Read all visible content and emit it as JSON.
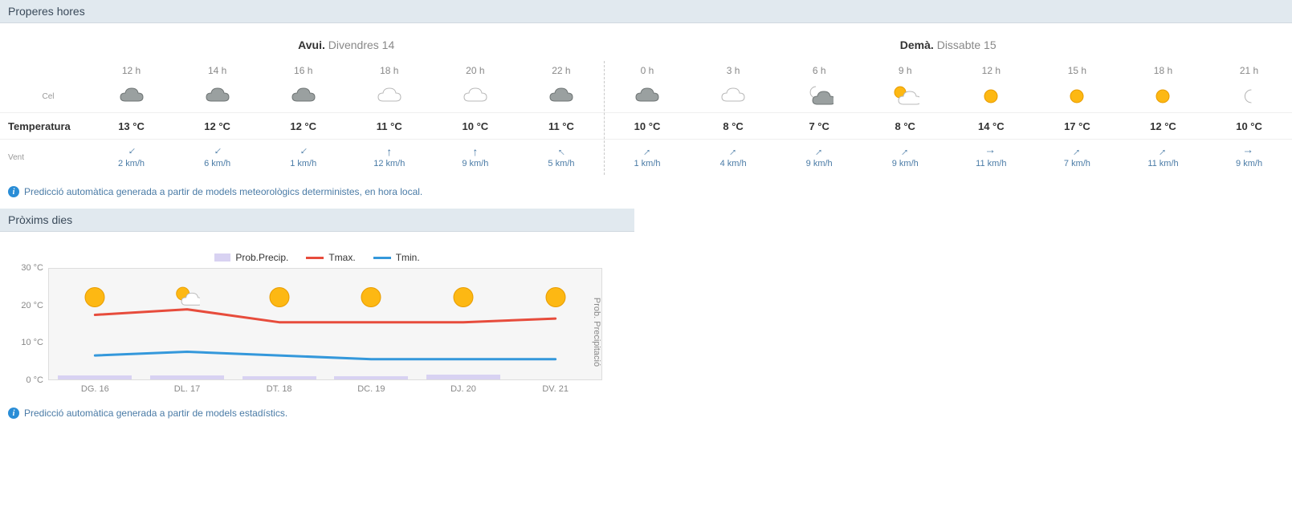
{
  "section_hours_title": "Properes hores",
  "section_days_title": "Pròxims dies",
  "info_hours": "Predicció automàtica generada a partir de models meteorològics deterministes, en hora local.",
  "info_days": "Predicció automàtica generada a partir de models estadístics.",
  "row_labels": {
    "sky": "Cel",
    "temp": "Temperatura",
    "wind": "Vent"
  },
  "days_header": [
    {
      "prefix": "Avui.",
      "label": " Divendres 14"
    },
    {
      "prefix": "Demà.",
      "label": " Dissabte 15"
    }
  ],
  "icon_palette": {
    "cloud_dark_fill": "#9aa0a0",
    "cloud_dark_stroke": "#6f7575",
    "cloud_light_fill": "#ffffff",
    "cloud_light_stroke": "#b9b9b9",
    "sun_fill": "#fdb813",
    "sun_stroke": "#e89c00",
    "moon_fill": "#d8d8d8",
    "moon_stroke": "#b5b5b5"
  },
  "hours": [
    {
      "time": "12 h",
      "sky": "cloud-dark",
      "temp": "13 °C",
      "wind_dir": 225,
      "wind_speed": "2 km/h"
    },
    {
      "time": "14 h",
      "sky": "cloud-dark",
      "temp": "12 °C",
      "wind_dir": 225,
      "wind_speed": "6 km/h"
    },
    {
      "time": "16 h",
      "sky": "cloud-dark",
      "temp": "12 °C",
      "wind_dir": 225,
      "wind_speed": "1 km/h"
    },
    {
      "time": "18 h",
      "sky": "cloud-light",
      "temp": "11 °C",
      "wind_dir": 0,
      "wind_speed": "12 km/h"
    },
    {
      "time": "20 h",
      "sky": "cloud-light",
      "temp": "10 °C",
      "wind_dir": 0,
      "wind_speed": "9 km/h"
    },
    {
      "time": "22 h",
      "sky": "cloud-dark",
      "temp": "11 °C",
      "wind_dir": 315,
      "wind_speed": "5 km/h"
    },
    {
      "time": "0 h",
      "sky": "cloud-dark",
      "temp": "10 °C",
      "wind_dir": 45,
      "wind_speed": "1 km/h"
    },
    {
      "time": "3 h",
      "sky": "cloud-light",
      "temp": "8 °C",
      "wind_dir": 45,
      "wind_speed": "4 km/h"
    },
    {
      "time": "6 h",
      "sky": "moon-cloud",
      "temp": "7 °C",
      "wind_dir": 45,
      "wind_speed": "9 km/h"
    },
    {
      "time": "9 h",
      "sky": "sun-cloud",
      "temp": "8 °C",
      "wind_dir": 45,
      "wind_speed": "9 km/h"
    },
    {
      "time": "12 h",
      "sky": "sun",
      "temp": "14 °C",
      "wind_dir": 90,
      "wind_speed": "11 km/h"
    },
    {
      "time": "15 h",
      "sky": "sun",
      "temp": "17 °C",
      "wind_dir": 45,
      "wind_speed": "7 km/h"
    },
    {
      "time": "18 h",
      "sky": "sun",
      "temp": "12 °C",
      "wind_dir": 45,
      "wind_speed": "11 km/h"
    },
    {
      "time": "21 h",
      "sky": "moon",
      "temp": "10 °C",
      "wind_dir": 90,
      "wind_speed": "9 km/h"
    }
  ],
  "split_after_index": 6,
  "legend": {
    "precip": "Prob.Precip.",
    "tmax": "Tmax.",
    "tmin": "Tmin."
  },
  "chart": {
    "type": "line+bar",
    "y_min": 0,
    "y_max": 30,
    "y_step": 10,
    "y_unit": "°C",
    "y_right_label": "Prob. Precipitació",
    "tmax_color": "#e74c3c",
    "tmin_color": "#3498db",
    "precip_color": "#d8d2f2",
    "plot_bg": "#f6f6f6",
    "line_width": 3,
    "days": [
      {
        "label": "DG. 16",
        "tmax": 17.5,
        "tmin": 6.5,
        "precip_pct": 8,
        "sky": "sun"
      },
      {
        "label": "DL. 17",
        "tmax": 19.0,
        "tmin": 7.5,
        "precip_pct": 8,
        "sky": "sun-cloud"
      },
      {
        "label": "DT. 18",
        "tmax": 15.5,
        "tmin": 6.5,
        "precip_pct": 6,
        "sky": "sun"
      },
      {
        "label": "DC. 19",
        "tmax": 15.5,
        "tmin": 5.5,
        "precip_pct": 6,
        "sky": "sun"
      },
      {
        "label": "DJ. 20",
        "tmax": 15.5,
        "tmin": 5.5,
        "precip_pct": 10,
        "sky": "sun"
      },
      {
        "label": "DV. 21",
        "tmax": 16.5,
        "tmin": 5.5,
        "precip_pct": 0,
        "sky": "sun"
      }
    ]
  }
}
